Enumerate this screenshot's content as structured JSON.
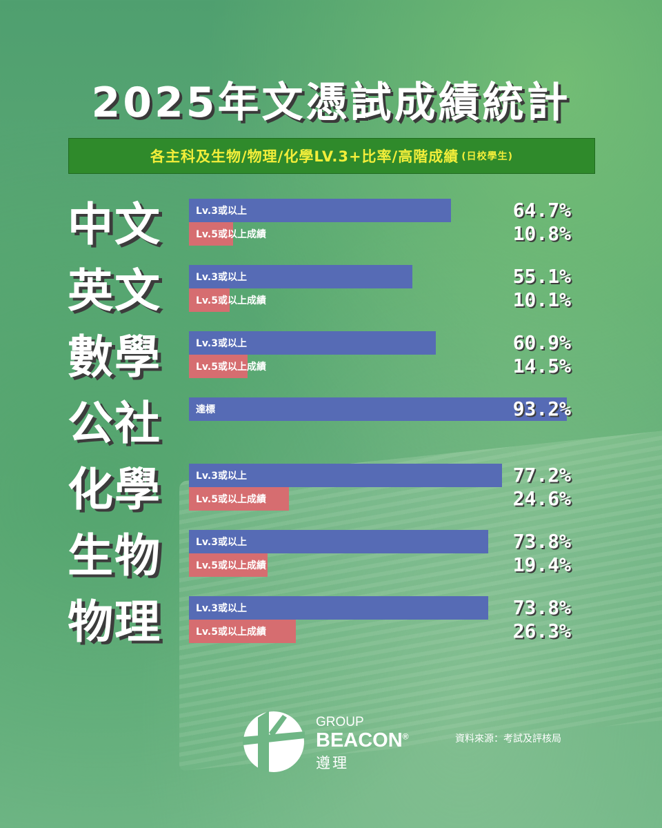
{
  "title": "2025年文憑試成績統計",
  "subtitle_main": "各主科及生物/物理/化學LV.3+比率/高階成績",
  "subtitle_small": "(日校學生)",
  "colors": {
    "lv3_bar": "#566bb5",
    "lv5_bar": "#d66d70",
    "subtitle_bg": "#2f8a2b",
    "subtitle_text": "#f2ee3a"
  },
  "chart_data": {
    "type": "bar",
    "orientation": "horizontal",
    "title": "2025年文憑試成績統計",
    "subjects": [
      {
        "name": "中文",
        "bars": [
          {
            "label": "Lv.3或以上",
            "value": 64.7,
            "display": "64.7%",
            "color": "blue"
          },
          {
            "label": "Lv.5或以上成績",
            "value": 10.8,
            "display": "10.8%",
            "color": "red"
          }
        ]
      },
      {
        "name": "英文",
        "bars": [
          {
            "label": "Lv.3或以上",
            "value": 55.1,
            "display": "55.1%",
            "color": "blue"
          },
          {
            "label": "Lv.5或以上成績",
            "value": 10.1,
            "display": "10.1%",
            "color": "red"
          }
        ]
      },
      {
        "name": "數學",
        "bars": [
          {
            "label": "Lv.3或以上",
            "value": 60.9,
            "display": "60.9%",
            "color": "blue"
          },
          {
            "label": "Lv.5或以上成績",
            "value": 14.5,
            "display": "14.5%",
            "color": "red"
          }
        ]
      },
      {
        "name": "公社",
        "bars": [
          {
            "label": "達標",
            "value": 93.2,
            "display": "93.2%",
            "color": "blue"
          }
        ]
      },
      {
        "name": "化學",
        "bars": [
          {
            "label": "Lv.3或以上",
            "value": 77.2,
            "display": "77.2%",
            "color": "blue"
          },
          {
            "label": "Lv.5或以上成績",
            "value": 24.6,
            "display": "24.6%",
            "color": "red"
          }
        ]
      },
      {
        "name": "生物",
        "bars": [
          {
            "label": "Lv.3或以上",
            "value": 73.8,
            "display": "73.8%",
            "color": "blue"
          },
          {
            "label": "Lv.5或以上成績",
            "value": 19.4,
            "display": "19.4%",
            "color": "red"
          }
        ]
      },
      {
        "name": "物理",
        "bars": [
          {
            "label": "Lv.3或以上",
            "value": 73.8,
            "display": "73.8%",
            "color": "blue"
          },
          {
            "label": "Lv.5或以上成績",
            "value": 26.3,
            "display": "26.3%",
            "color": "red"
          }
        ]
      }
    ]
  },
  "footer": {
    "group": "GROUP",
    "brand": "BEACON",
    "registered": "®",
    "brand_cn": "遵理",
    "source": "資料來源：考試及評核局",
    "logo_icon": "beacon-logo-icon"
  }
}
